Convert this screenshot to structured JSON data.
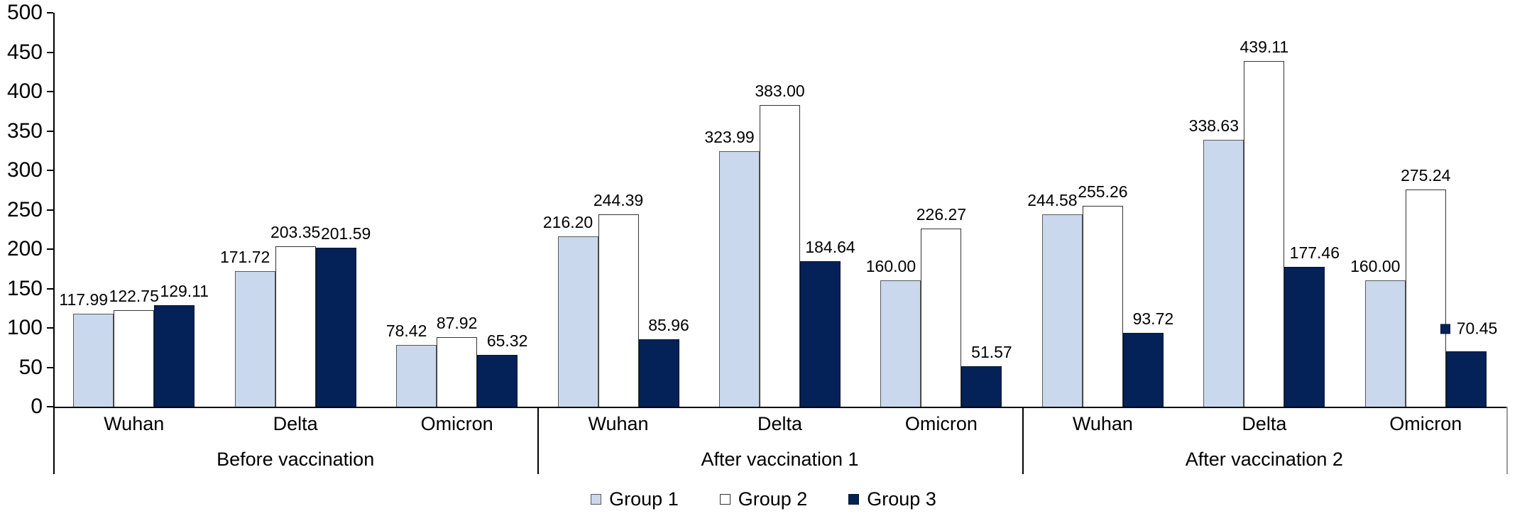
{
  "chart_data": {
    "type": "bar",
    "title": "",
    "ylabel": "",
    "xlabel": "",
    "ylim": [
      0,
      500
    ],
    "ytick_step": 50,
    "yticks": [
      "0",
      "50",
      "100",
      "150",
      "200",
      "250",
      "300",
      "350",
      "400",
      "450",
      "500"
    ],
    "grid": false,
    "legend_position": "bottom",
    "series": [
      {
        "name": "Group 1",
        "color": "#C9D8ED",
        "border": "#595959"
      },
      {
        "name": "Group 2",
        "color": "#FFFFFF",
        "border": "#333333"
      },
      {
        "name": "Group 3",
        "color": "#042158",
        "border": "#04152e"
      }
    ],
    "groups": [
      {
        "label": "Before vaccination",
        "categories": [
          {
            "label": "Wuhan",
            "values": [
              117.99,
              122.75,
              129.11
            ],
            "value_labels": [
              "117.99",
              "122.75",
              "129.11"
            ]
          },
          {
            "label": "Delta",
            "values": [
              171.72,
              203.35,
              201.59
            ],
            "value_labels": [
              "171.72",
              "203.35",
              "201.59"
            ]
          },
          {
            "label": "Omicron",
            "values": [
              78.42,
              87.92,
              65.32
            ],
            "value_labels": [
              "78.42",
              "87.92",
              "65.32"
            ]
          }
        ]
      },
      {
        "label": "After vaccination 1",
        "categories": [
          {
            "label": "Wuhan",
            "values": [
              216.2,
              244.39,
              85.96
            ],
            "value_labels": [
              "216.20",
              "244.39",
              "85.96"
            ]
          },
          {
            "label": "Delta",
            "values": [
              323.99,
              383.0,
              184.64
            ],
            "value_labels": [
              "323.99",
              "383.00",
              "184.64"
            ]
          },
          {
            "label": "Omicron",
            "values": [
              160.0,
              226.27,
              51.57
            ],
            "value_labels": [
              "160.00",
              "226.27",
              "51.57"
            ]
          }
        ]
      },
      {
        "label": "After vaccination 2",
        "categories": [
          {
            "label": "Wuhan",
            "values": [
              244.58,
              255.26,
              93.72
            ],
            "value_labels": [
              "244.58",
              "255.26",
              "93.72"
            ]
          },
          {
            "label": "Delta",
            "values": [
              338.63,
              439.11,
              177.46
            ],
            "value_labels": [
              "338.63",
              "439.11",
              "177.46"
            ]
          },
          {
            "label": "Omicron",
            "values": [
              160.0,
              275.24,
              70.45
            ],
            "value_labels": [
              "160.00",
              "275.24",
              "70.45"
            ]
          }
        ]
      }
    ],
    "moved_label": {
      "group_index": 2,
      "category_index": 2,
      "series_index": 2,
      "label": "70.45",
      "show_legend_key": true,
      "raised_center_value": 99
    }
  },
  "legend": {
    "items": [
      {
        "label": "Group 1"
      },
      {
        "label": "Group 2"
      },
      {
        "label": "Group 3"
      }
    ]
  }
}
